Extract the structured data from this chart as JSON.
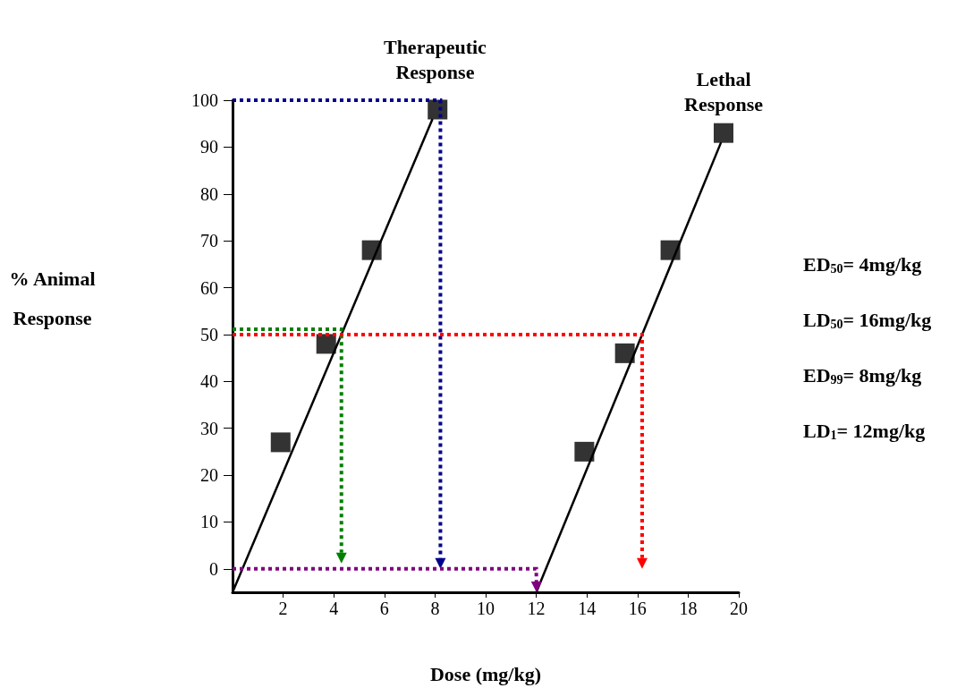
{
  "chart_data": {
    "type": "scatter",
    "xlabel": "Dose (mg/kg)",
    "ylabel": "% Animal Response",
    "xlim": [
      0,
      20
    ],
    "ylim": [
      -5,
      100
    ],
    "xticks": [
      2,
      4,
      6,
      8,
      10,
      12,
      14,
      16,
      18,
      20
    ],
    "yticks": [
      0,
      10,
      20,
      30,
      40,
      50,
      60,
      70,
      80,
      90,
      100
    ],
    "grid": false,
    "marker": "square",
    "series": [
      {
        "type": "line",
        "color": "#000000",
        "x": [
          0,
          7.9
        ],
        "values": [
          -5,
          96
        ],
        "line_style": "solid",
        "marker": "none"
      },
      {
        "type": "line",
        "color": "#000000",
        "x": [
          12,
          19.3
        ],
        "values": [
          -5,
          91
        ],
        "line_style": "solid",
        "marker": "none"
      },
      {
        "color": "#000000",
        "x": [
          1.9,
          3.7,
          5.5,
          8.1
        ],
        "values": [
          27,
          48,
          68,
          98
        ]
      },
      {
        "color": "#000000",
        "x": [
          13.9,
          15.5,
          17.3,
          19.4
        ],
        "values": [
          25,
          46,
          68,
          93
        ]
      }
    ],
    "annotations": [
      {
        "text": "Therapeutic\nResponse",
        "x": 8,
        "y": 100
      },
      {
        "text": "Lethal\nResponse",
        "x": 19.4,
        "y": 93
      },
      "ED$_{50}$= 4mg/kg",
      "LD$_{50}$= 16mg/kg",
      "ED$_{99}$= 8mg/kg",
      "LD$_{1}$= 12mg/kg"
    ]
  }
}
